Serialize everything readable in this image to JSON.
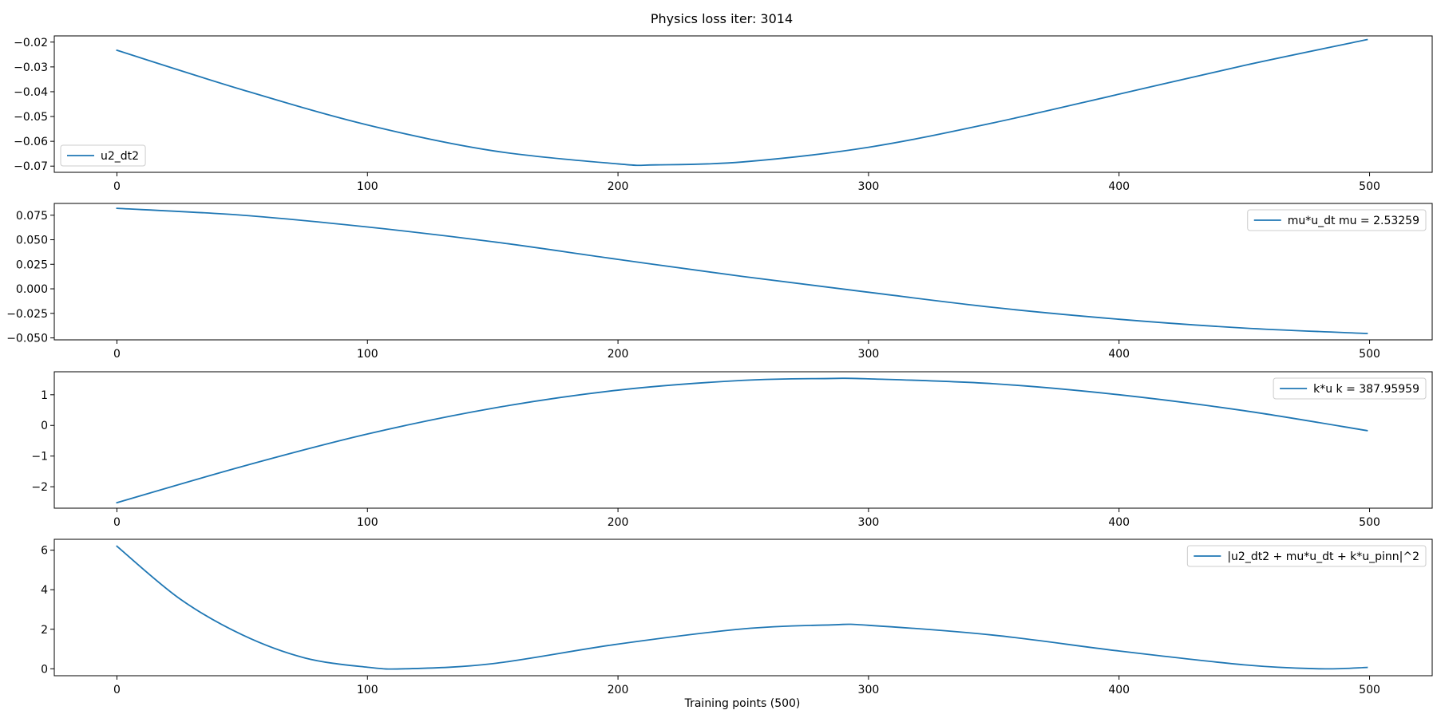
{
  "figure": {
    "title": "Physics loss iter: 3014",
    "xlabel": "Training points (500)"
  },
  "chart_data": [
    {
      "type": "line",
      "legend_location": "lower-left",
      "xlim": [
        -25,
        525
      ],
      "ylim": [
        -0.0725,
        -0.0175
      ],
      "xticks": [
        0,
        100,
        200,
        300,
        400,
        500
      ],
      "yticks": [
        -0.07,
        -0.06,
        -0.05,
        -0.04,
        -0.03,
        -0.02
      ],
      "ytick_labels": [
        "−0.07",
        "−0.06",
        "−0.05",
        "−0.04",
        "−0.03",
        "−0.02"
      ],
      "xtick_labels": [
        "0",
        "100",
        "200",
        "300",
        "400",
        "500"
      ],
      "series": [
        {
          "name": "u2_dt2",
          "color": "#1f77b4",
          "x": [
            0,
            50,
            100,
            150,
            200,
            215,
            250,
            300,
            350,
            400,
            450,
            499
          ],
          "y": [
            -0.0233,
            -0.0392,
            -0.0534,
            -0.0638,
            -0.0691,
            -0.0695,
            -0.0683,
            -0.0624,
            -0.0525,
            -0.041,
            -0.0294,
            -0.019
          ]
        }
      ]
    },
    {
      "type": "line",
      "legend_location": "upper-right",
      "xlim": [
        -25,
        525
      ],
      "ylim": [
        -0.052,
        0.087
      ],
      "xticks": [
        0,
        100,
        200,
        300,
        400,
        500
      ],
      "yticks": [
        -0.05,
        -0.025,
        0.0,
        0.025,
        0.05,
        0.075
      ],
      "ytick_labels": [
        "−0.050",
        "−0.025",
        "0.000",
        "0.025",
        "0.050",
        "0.075"
      ],
      "xtick_labels": [
        "0",
        "100",
        "200",
        "300",
        "400",
        "500"
      ],
      "series": [
        {
          "name": "mu*u_dt  mu = 2.53259",
          "color": "#1f77b4",
          "x": [
            0,
            50,
            100,
            150,
            200,
            250,
            300,
            350,
            400,
            450,
            499
          ],
          "y": [
            0.082,
            0.075,
            0.063,
            0.048,
            0.03,
            0.0125,
            -0.0035,
            -0.019,
            -0.031,
            -0.04,
            -0.0455
          ]
        }
      ]
    },
    {
      "type": "line",
      "legend_location": "upper-right",
      "xlim": [
        -25,
        525
      ],
      "ylim": [
        -2.7,
        1.75
      ],
      "xticks": [
        0,
        100,
        200,
        300,
        400,
        500
      ],
      "yticks": [
        -2,
        -1,
        0,
        1
      ],
      "ytick_labels": [
        "−2",
        "−1",
        "0",
        "1"
      ],
      "xtick_labels": [
        "0",
        "100",
        "200",
        "300",
        "400",
        "500"
      ],
      "series": [
        {
          "name": "k*u  k = 387.95959",
          "color": "#1f77b4",
          "x": [
            0,
            50,
            100,
            150,
            200,
            250,
            285,
            300,
            350,
            400,
            450,
            499
          ],
          "y": [
            -2.52,
            -1.34,
            -0.28,
            0.56,
            1.15,
            1.47,
            1.53,
            1.52,
            1.36,
            1.0,
            0.48,
            -0.17
          ]
        }
      ]
    },
    {
      "type": "line",
      "legend_location": "upper-right",
      "xlim": [
        -25,
        525
      ],
      "ylim": [
        -0.35,
        6.55
      ],
      "xticks": [
        0,
        100,
        200,
        300,
        400,
        500
      ],
      "yticks": [
        0,
        2,
        4,
        6
      ],
      "ytick_labels": [
        "0",
        "2",
        "4",
        "6"
      ],
      "xtick_labels": [
        "0",
        "100",
        "200",
        "300",
        "400",
        "500"
      ],
      "series": [
        {
          "name": "|u2_dt2 + mu*u_dt + k*u_pinn|^2",
          "color": "#1f77b4",
          "x": [
            0,
            25,
            50,
            75,
            100,
            115,
            150,
            200,
            250,
            285,
            300,
            350,
            400,
            450,
            480,
            499
          ],
          "y": [
            6.2,
            3.55,
            1.72,
            0.55,
            0.08,
            0.0,
            0.26,
            1.25,
            2.02,
            2.22,
            2.2,
            1.7,
            0.9,
            0.2,
            0.0,
            0.07
          ]
        }
      ]
    }
  ]
}
